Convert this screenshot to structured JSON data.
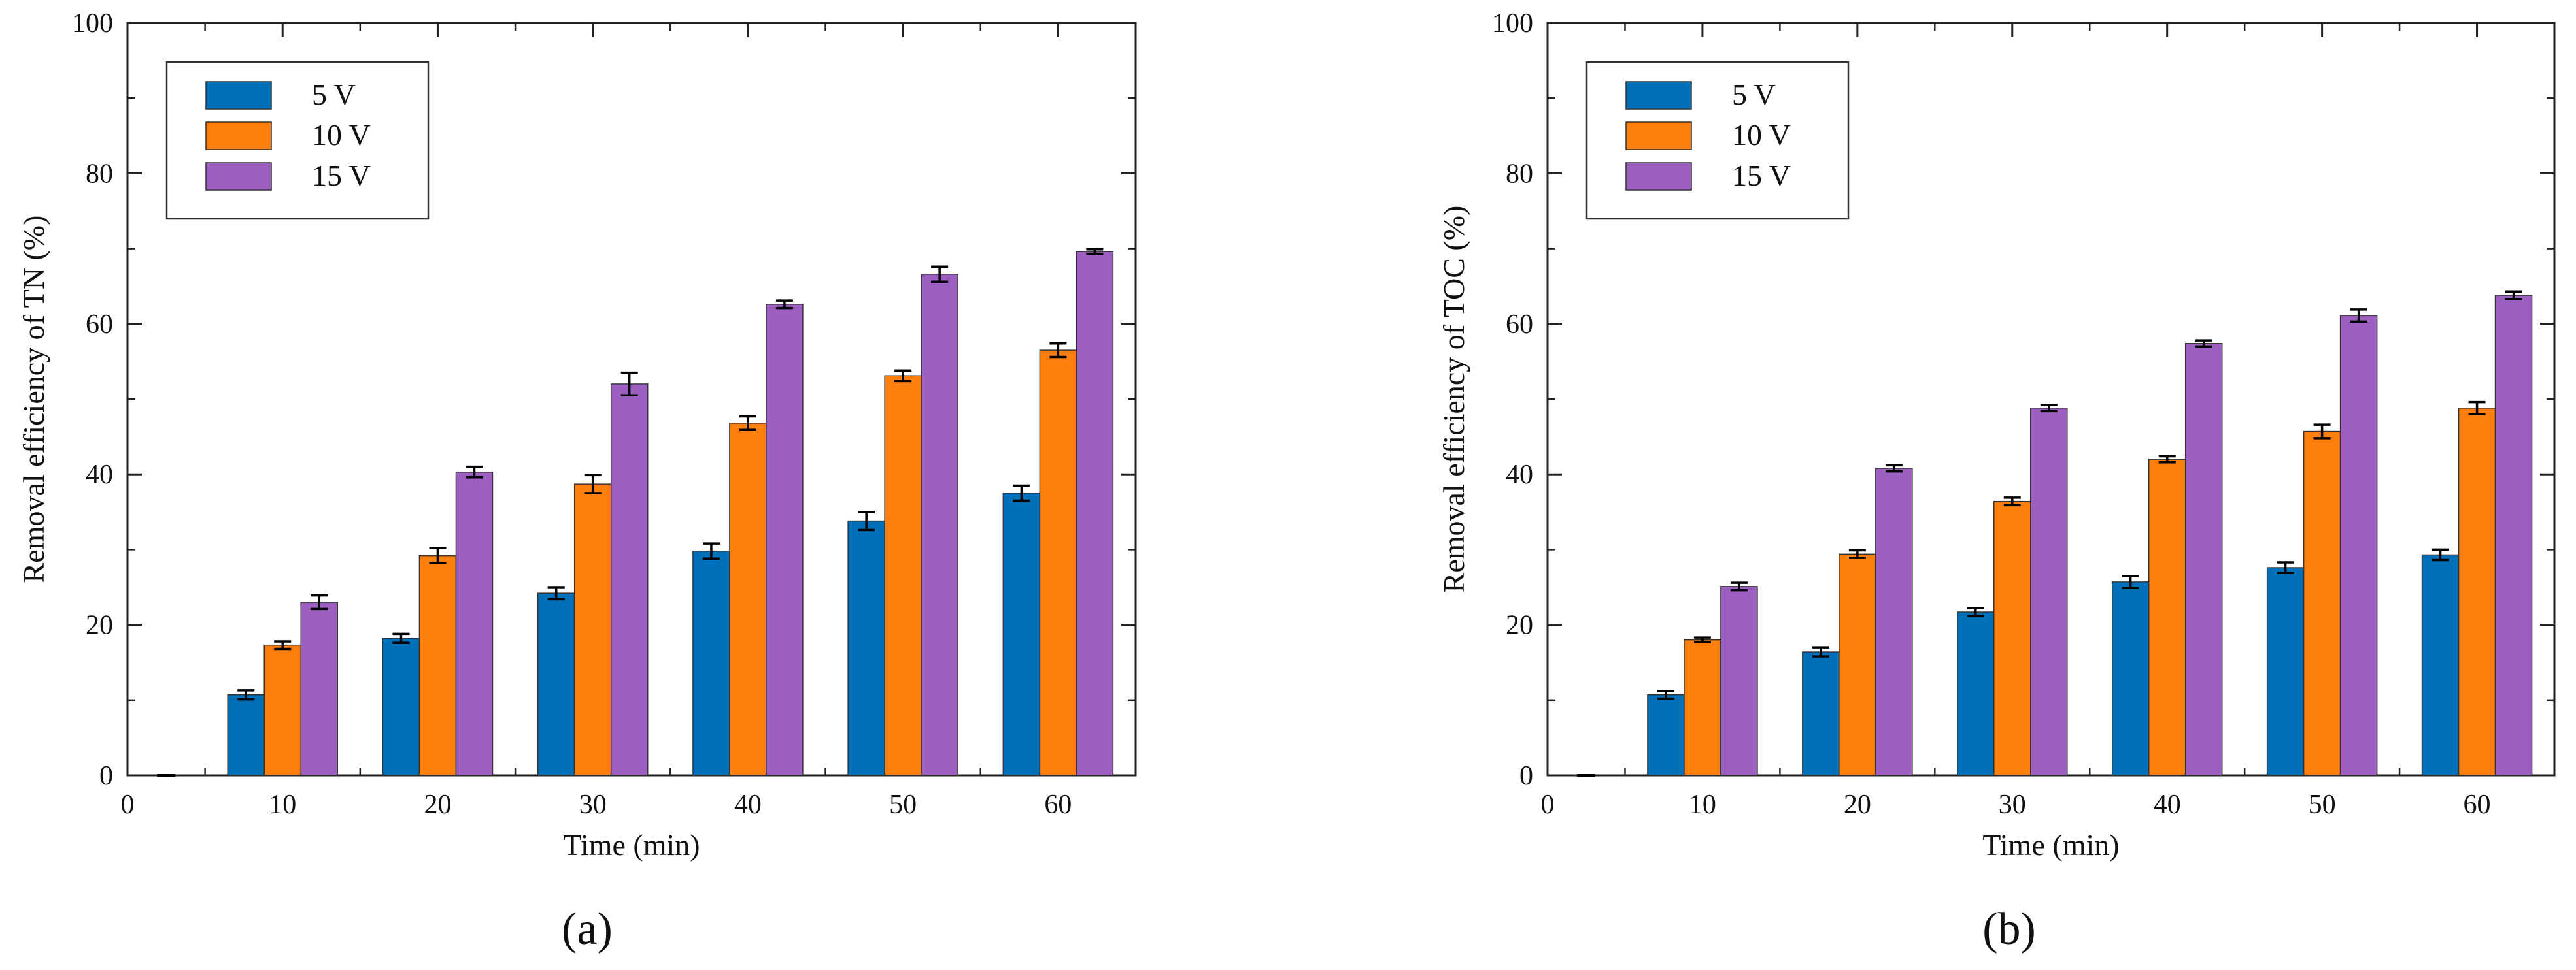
{
  "chart_data": [
    {
      "type": "bar",
      "panel_label": "(a)",
      "title": "",
      "xlabel": "Time (min)",
      "ylabel": "Removal efficiency of TN (%)",
      "xlim": [
        0,
        65
      ],
      "ylim": [
        0,
        100
      ],
      "x_ticks": [
        0,
        10,
        20,
        30,
        40,
        50,
        60
      ],
      "y_ticks": [
        0,
        20,
        40,
        60,
        80,
        100
      ],
      "grid": false,
      "legend_position": "top-left",
      "zero_point": {
        "x": 2.5,
        "value": 0
      },
      "categories": [
        10,
        20,
        30,
        40,
        50,
        60
      ],
      "series": [
        {
          "name": "5 V",
          "color": "#0070b8",
          "values": [
            10.7,
            18.2,
            24.2,
            29.8,
            33.8,
            37.5
          ],
          "errors": [
            0.6,
            0.6,
            0.8,
            1.0,
            1.2,
            1.0
          ]
        },
        {
          "name": "10 V",
          "color": "#ff7f0e",
          "values": [
            17.3,
            29.2,
            38.7,
            46.8,
            53.1,
            56.5
          ],
          "errors": [
            0.5,
            1.0,
            1.2,
            0.9,
            0.7,
            0.9
          ]
        },
        {
          "name": "15 V",
          "color": "#9e5fc3",
          "values": [
            23.0,
            40.3,
            52.0,
            62.6,
            66.6,
            69.6
          ],
          "errors": [
            0.9,
            0.7,
            1.5,
            0.5,
            1.0,
            0.3
          ]
        }
      ]
    },
    {
      "type": "bar",
      "panel_label": "(b)",
      "title": "",
      "xlabel": "Time (min)",
      "ylabel": "Removal efficiency of TOC (%)",
      "xlim": [
        0,
        65
      ],
      "ylim": [
        0,
        100
      ],
      "x_ticks": [
        0,
        10,
        20,
        30,
        40,
        50,
        60
      ],
      "y_ticks": [
        0,
        20,
        40,
        60,
        80,
        100
      ],
      "grid": false,
      "legend_position": "top-left",
      "zero_point": {
        "x": 2.5,
        "value": 0
      },
      "categories": [
        10,
        20,
        30,
        40,
        50,
        60
      ],
      "series": [
        {
          "name": "5 V",
          "color": "#0070b8",
          "values": [
            10.7,
            16.4,
            21.7,
            25.7,
            27.6,
            29.3
          ],
          "errors": [
            0.5,
            0.6,
            0.5,
            0.8,
            0.7,
            0.7
          ]
        },
        {
          "name": "10 V",
          "color": "#ff7f0e",
          "values": [
            18.0,
            29.4,
            36.4,
            42.0,
            45.7,
            48.8
          ],
          "errors": [
            0.3,
            0.5,
            0.5,
            0.4,
            0.9,
            0.8
          ]
        },
        {
          "name": "15 V",
          "color": "#9e5fc3",
          "values": [
            25.1,
            40.8,
            48.8,
            57.4,
            61.1,
            63.8
          ],
          "errors": [
            0.5,
            0.4,
            0.4,
            0.4,
            0.8,
            0.5
          ]
        }
      ]
    }
  ]
}
